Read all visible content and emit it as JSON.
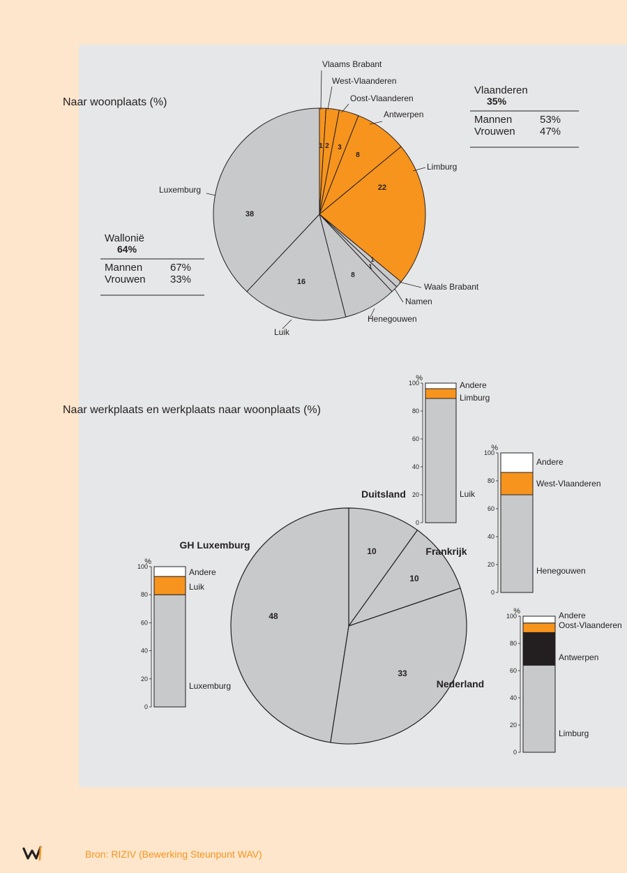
{
  "footer": {
    "source": "Bron: RIZIV (Bewerking Steunpunt WAV)",
    "logo_text": "W"
  },
  "colors": {
    "orange": "#f7941d",
    "grey": "#c8c9cb",
    "black": "#231f20",
    "white": "#ffffff",
    "panel": "#e6e7e8",
    "page": "#fde6cc"
  },
  "chart_data": [
    {
      "type": "pie",
      "title": "Naar woonplaats (%)",
      "slices": [
        {
          "label": "Vlaams Brabant",
          "value": 1,
          "region": "Vlaanderen",
          "color": "#f7941d"
        },
        {
          "label": "West-Vlaanderen",
          "value": 2,
          "region": "Vlaanderen",
          "color": "#f7941d"
        },
        {
          "label": "Oost-Vlaanderen",
          "value": 3,
          "region": "Vlaanderen",
          "color": "#f7941d"
        },
        {
          "label": "Antwerpen",
          "value": 8,
          "region": "Vlaanderen",
          "color": "#f7941d"
        },
        {
          "label": "Limburg",
          "value": 22,
          "region": "Vlaanderen",
          "color": "#f7941d"
        },
        {
          "label": "Waals Brabant",
          "value": 1,
          "region": "Wallonië",
          "color": "#c8c9cb"
        },
        {
          "label": "Namen",
          "value": 1,
          "region": "Wallonië",
          "color": "#c8c9cb"
        },
        {
          "label": "Henegouwen",
          "value": 8,
          "region": "Wallonië",
          "color": "#c8c9cb"
        },
        {
          "label": "Luik",
          "value": 16,
          "region": "Wallonië",
          "color": "#c8c9cb"
        },
        {
          "label": "Luxemburg",
          "value": 38,
          "region": "Wallonië",
          "color": "#c8c9cb"
        }
      ],
      "legend_boxes": [
        {
          "region": "Vlaanderen",
          "total": "35%",
          "rows": [
            {
              "label": "Mannen",
              "value": "53%"
            },
            {
              "label": "Vrouwen",
              "value": "47%"
            }
          ]
        },
        {
          "region": "Wallonië",
          "total": "64%",
          "rows": [
            {
              "label": "Mannen",
              "value": "67%"
            },
            {
              "label": "Vrouwen",
              "value": "33%"
            }
          ]
        }
      ]
    },
    {
      "type": "pie",
      "title": "Naar werkplaats en werkplaats naar woonplaats (%)",
      "slices": [
        {
          "label": "Duitsland",
          "value": 10
        },
        {
          "label": "Frankrijk",
          "value": 10
        },
        {
          "label": "Nederland",
          "value": 33
        },
        {
          "label": "GH Luxemburg",
          "value": 48
        }
      ]
    },
    {
      "type": "bar",
      "stacked": true,
      "category": "Duitsland",
      "unit": "%",
      "ylim": [
        0,
        100
      ],
      "yticks": [
        0,
        20,
        40,
        60,
        80,
        100
      ],
      "segments": [
        {
          "label": "Luik",
          "value": 89,
          "color": "#c8c9cb"
        },
        {
          "label": "Limburg",
          "value": 7,
          "color": "#f7941d"
        },
        {
          "label": "Andere",
          "value": 4,
          "color": "#ffffff"
        }
      ]
    },
    {
      "type": "bar",
      "stacked": true,
      "category": "Frankrijk",
      "unit": "%",
      "ylim": [
        0,
        100
      ],
      "yticks": [
        0,
        20,
        40,
        60,
        80,
        100
      ],
      "segments": [
        {
          "label": "Henegouwen",
          "value": 70,
          "color": "#c8c9cb"
        },
        {
          "label": "West-Vlaanderen",
          "value": 16,
          "color": "#f7941d"
        },
        {
          "label": "Andere",
          "value": 14,
          "color": "#ffffff"
        }
      ]
    },
    {
      "type": "bar",
      "stacked": true,
      "category": "Nederland",
      "unit": "%",
      "ylim": [
        0,
        100
      ],
      "yticks": [
        0,
        20,
        40,
        60,
        80,
        100
      ],
      "segments": [
        {
          "label": "Limburg",
          "value": 64,
          "color": "#c8c9cb"
        },
        {
          "label": "Antwerpen",
          "value": 24,
          "color": "#231f20"
        },
        {
          "label": "Oost-Vlaanderen",
          "value": 7,
          "color": "#f7941d"
        },
        {
          "label": "Andere",
          "value": 5,
          "color": "#ffffff"
        }
      ]
    },
    {
      "type": "bar",
      "stacked": true,
      "category": "GH Luxemburg",
      "unit": "%",
      "ylim": [
        0,
        100
      ],
      "yticks": [
        0,
        20,
        40,
        60,
        80,
        100
      ],
      "segments": [
        {
          "label": "Luxemburg",
          "value": 80,
          "color": "#c8c9cb"
        },
        {
          "label": "Luik",
          "value": 13,
          "color": "#f7941d"
        },
        {
          "label": "Andere",
          "value": 7,
          "color": "#ffffff"
        }
      ]
    }
  ]
}
